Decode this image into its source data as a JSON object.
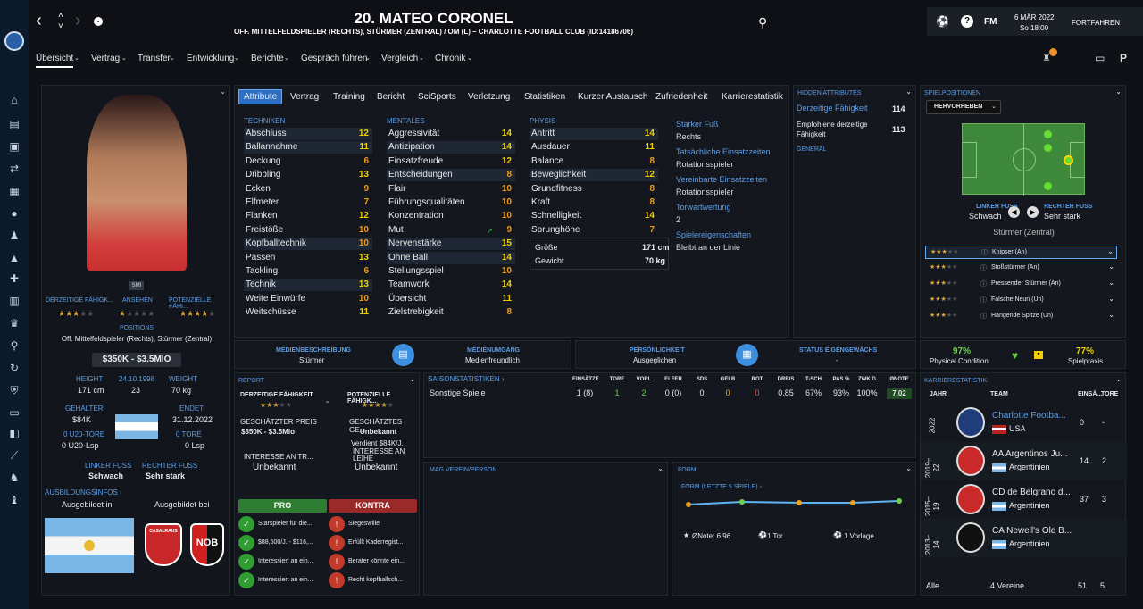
{
  "header": {
    "title": "20. MATEO CORONEL",
    "subtitle": "OFF. MITTELFELDSPIELER (RECHTS), STÜRMER (ZENTRAL) / OM (L) – CHARLOTTE FOOTBALL CLUB (ID:14186706)",
    "date": "6 MÄR 2022",
    "time": "So 18:00",
    "continue": "FORTFAHREN",
    "fm": "FM"
  },
  "nav": [
    "Übersicht",
    "Vertrag",
    "Transfer",
    "Entwicklung",
    "Berichte",
    "Gespräch führen",
    "Vergleich",
    "Chronik"
  ],
  "tabs": [
    "Attribute",
    "Vertrag",
    "Training",
    "Bericht",
    "SciSports",
    "Verletzung",
    "Statistiken",
    "Kurzer Austausch",
    "Zufriedenheit",
    "Karrierestatistik"
  ],
  "left": {
    "smi": "SMI",
    "labels": {
      "current": "DERZEITIGE FÄHIGK...",
      "reputation": "ANSEHEN",
      "potential": "POTENZIELLE FÄHI...",
      "positions": "POSITIONS",
      "height": "HEIGHT",
      "dob": "24.10.1998",
      "weight": "WEIGHT",
      "salary": "GEHÄLTER",
      "ends": "ENDET",
      "u20_goals": "0 U20-TORE",
      "goals": "0 TORE",
      "left_foot": "LINKER FUSS",
      "right_foot": "RECHTER FUSS",
      "training_info": "AUSBILDUNGSINFOS ›",
      "trained_in": "Ausgebildet in",
      "trained_at": "Ausgebildet bei"
    },
    "positions": "Off. Mittelfeldspieler (Rechts), Stürmer (Zentral)",
    "value": "$350K - $3.5MIO",
    "height": "171 cm",
    "age": "23",
    "weight": "70 kg",
    "salary": "$84K",
    "contract_end": "31.12.2022",
    "u20_apps": "0 U20-Lsp",
    "apps": "0 Lsp",
    "left_foot": "Schwach",
    "right_foot": "Sehr stark",
    "club1": "CASALRAUS",
    "club2": "NOB"
  },
  "attributes": {
    "technik_title": "TECHNIKEN",
    "mentales_title": "MENTALES",
    "physis_title": "PHYSIS",
    "technik": [
      [
        "Abschluss",
        "12"
      ],
      [
        "Ballannahme",
        "11"
      ],
      [
        "Deckung",
        "6"
      ],
      [
        "Dribbling",
        "13"
      ],
      [
        "Ecken",
        "9"
      ],
      [
        "Elfmeter",
        "7"
      ],
      [
        "Flanken",
        "12"
      ],
      [
        "Freistöße",
        "10"
      ],
      [
        "Kopfballtechnik",
        "10"
      ],
      [
        "Passen",
        "13"
      ],
      [
        "Tackling",
        "6"
      ],
      [
        "Technik",
        "13"
      ],
      [
        "Weite Einwürfe",
        "10"
      ],
      [
        "Weitschüsse",
        "11"
      ]
    ],
    "mentales": [
      [
        "Aggressivität",
        "14"
      ],
      [
        "Antizipation",
        "14"
      ],
      [
        "Einsatzfreude",
        "12"
      ],
      [
        "Entscheidungen",
        "8"
      ],
      [
        "Flair",
        "10"
      ],
      [
        "Führungsqualitäten",
        "10"
      ],
      [
        "Konzentration",
        "10"
      ],
      [
        "Mut",
        "9"
      ],
      [
        "Nervenstärke",
        "15"
      ],
      [
        "Ohne Ball",
        "14"
      ],
      [
        "Stellungsspiel",
        "10"
      ],
      [
        "Teamwork",
        "14"
      ],
      [
        "Übersicht",
        "11"
      ],
      [
        "Zielstrebigkeit",
        "8"
      ]
    ],
    "physis": [
      [
        "Antritt",
        "14"
      ],
      [
        "Ausdauer",
        "11"
      ],
      [
        "Balance",
        "8"
      ],
      [
        "Beweglichkeit",
        "12"
      ],
      [
        "Grundfitness",
        "8"
      ],
      [
        "Kraft",
        "8"
      ],
      [
        "Schnelligkeit",
        "14"
      ],
      [
        "Sprunghöhe",
        "7"
      ]
    ],
    "size_label": "Größe",
    "size": "171 cm",
    "weight_label": "Gewicht",
    "weight": "70 kg"
  },
  "traits": [
    {
      "k": "Starker Fuß",
      "v": "Rechts"
    },
    {
      "k": "Tatsächliche Einsatzzeiten",
      "v": "Rotationsspieler"
    },
    {
      "k": "Vereinbarte Einsatzzeiten",
      "v": "Rotationsspieler"
    },
    {
      "k": "Torwartwertung",
      "v": "2"
    },
    {
      "k": "Spielereigenschaften",
      "v": "Bleibt an der Linie"
    }
  ],
  "hidden": {
    "title": "HIDDEN ATTRIBUTES",
    "ca_label": "Derzeitige Fähigkeit",
    "ca": "114",
    "pa_label": "Empfohlene derzeitige Fähigkeit",
    "pa": "113",
    "general": "GENERAL"
  },
  "positions_panel": {
    "title": "SPIELPOSITIONEN",
    "select": "HERVORHEBEN",
    "lf_label": "LINKER FUSS",
    "lf": "Schwach",
    "rf_label": "RECHTER FUSS",
    "rf": "Sehr stark",
    "role": "Stürmer (Zentral)",
    "roles": [
      "Knipser (An)",
      "Stoßstürmer (An)",
      "Pressender Stürmer (An)",
      "Falsche Neun (Un)",
      "Hängende Spitze (Un)"
    ]
  },
  "media": {
    "desc_label": "MEDIENBESCHREIBUNG",
    "desc": "Stürmer",
    "handling_label": "MEDIENUMGANG",
    "handling": "Medienfreundlich",
    "pers_label": "PERSÖNLICHKEIT",
    "pers": "Ausgeglichen",
    "status_label": "STATUS EIGENGEWÄCHS",
    "status": "-"
  },
  "condition": {
    "cond": "97%",
    "cond_label": "Physical Condition",
    "prac": "77%",
    "prac_label": "Spielpraxis"
  },
  "report": {
    "title": "REPORT",
    "ca": "DERZEITIGE FÄHIGKEIT",
    "pa": "POTENZIELLE FÄHIGK...",
    "dash": "-",
    "price_label": "GESCHÄTZTER PREIS",
    "price": "$350K - $3.5Mio",
    "wage_label": "GESCHÄTZTES GE...",
    "wage": "Unbekannt",
    "wage_sub": "Verdient $84K/J.",
    "int1_label": "INTERESSE AN TR...",
    "int1": "Unbekannt",
    "int2_label": "INTERESSE AN LEIHE",
    "int2": "Unbekannt",
    "pro": "PRO",
    "contra": "KONTRA",
    "pros": [
      "Starspieler für die...",
      "$88,500/J. - $116,...",
      "Interessiert an ein...",
      "Interessiert an ein..."
    ],
    "cons": [
      "Siegeswille",
      "Erfüllt Kaderregist...",
      "Berater könnte ein...",
      "Recht kopfballsch..."
    ]
  },
  "season": {
    "title": "SAISONSTATISTIKEN ›",
    "headers": [
      "EINSÄTZE",
      "TORE",
      "VORL",
      "ELFER",
      "SDS",
      "GELB",
      "ROT",
      "DRB/S",
      "T-SCH",
      "PAS %",
      "ZWK G",
      "ØNOTE"
    ],
    "row_label": "Sonstige Spiele",
    "row": [
      "1 (8)",
      "1",
      "2",
      "0 (0)",
      "0",
      "0",
      "0",
      "0.85",
      "67%",
      "93%",
      "100%",
      "7.02"
    ]
  },
  "mag": {
    "title": "MAG VEREIN/PERSON"
  },
  "form": {
    "title": "FORM",
    "sub": "FORM (LETZTE 5 SPIELE) ›",
    "note": "ØNote: 6.96",
    "goal": "1 Tor",
    "assist": "1 Vorlage"
  },
  "career": {
    "title": "KARRIERESTATISTIK",
    "headers": [
      "JAHR",
      "TEAM",
      "EINSÄ...",
      "TORE"
    ],
    "rows": [
      {
        "year": "2022",
        "team": "Charlotte Footba...",
        "country": "USA",
        "apps": "0",
        "goals": "-"
      },
      {
        "year": "2019–22",
        "team": "AA Argentinos Ju...",
        "country": "Argentinien",
        "apps": "14",
        "goals": "2"
      },
      {
        "year": "2015–19",
        "team": "CD de Belgrano d...",
        "country": "Argentinien",
        "apps": "37",
        "goals": "3"
      },
      {
        "year": "2013–14",
        "team": "CA Newell's Old B...",
        "country": "Argentinien",
        "apps": "",
        "goals": ""
      }
    ],
    "all": "Alle",
    "clubs": "4 Vereine",
    "total_apps": "51",
    "total_goals": "5"
  }
}
